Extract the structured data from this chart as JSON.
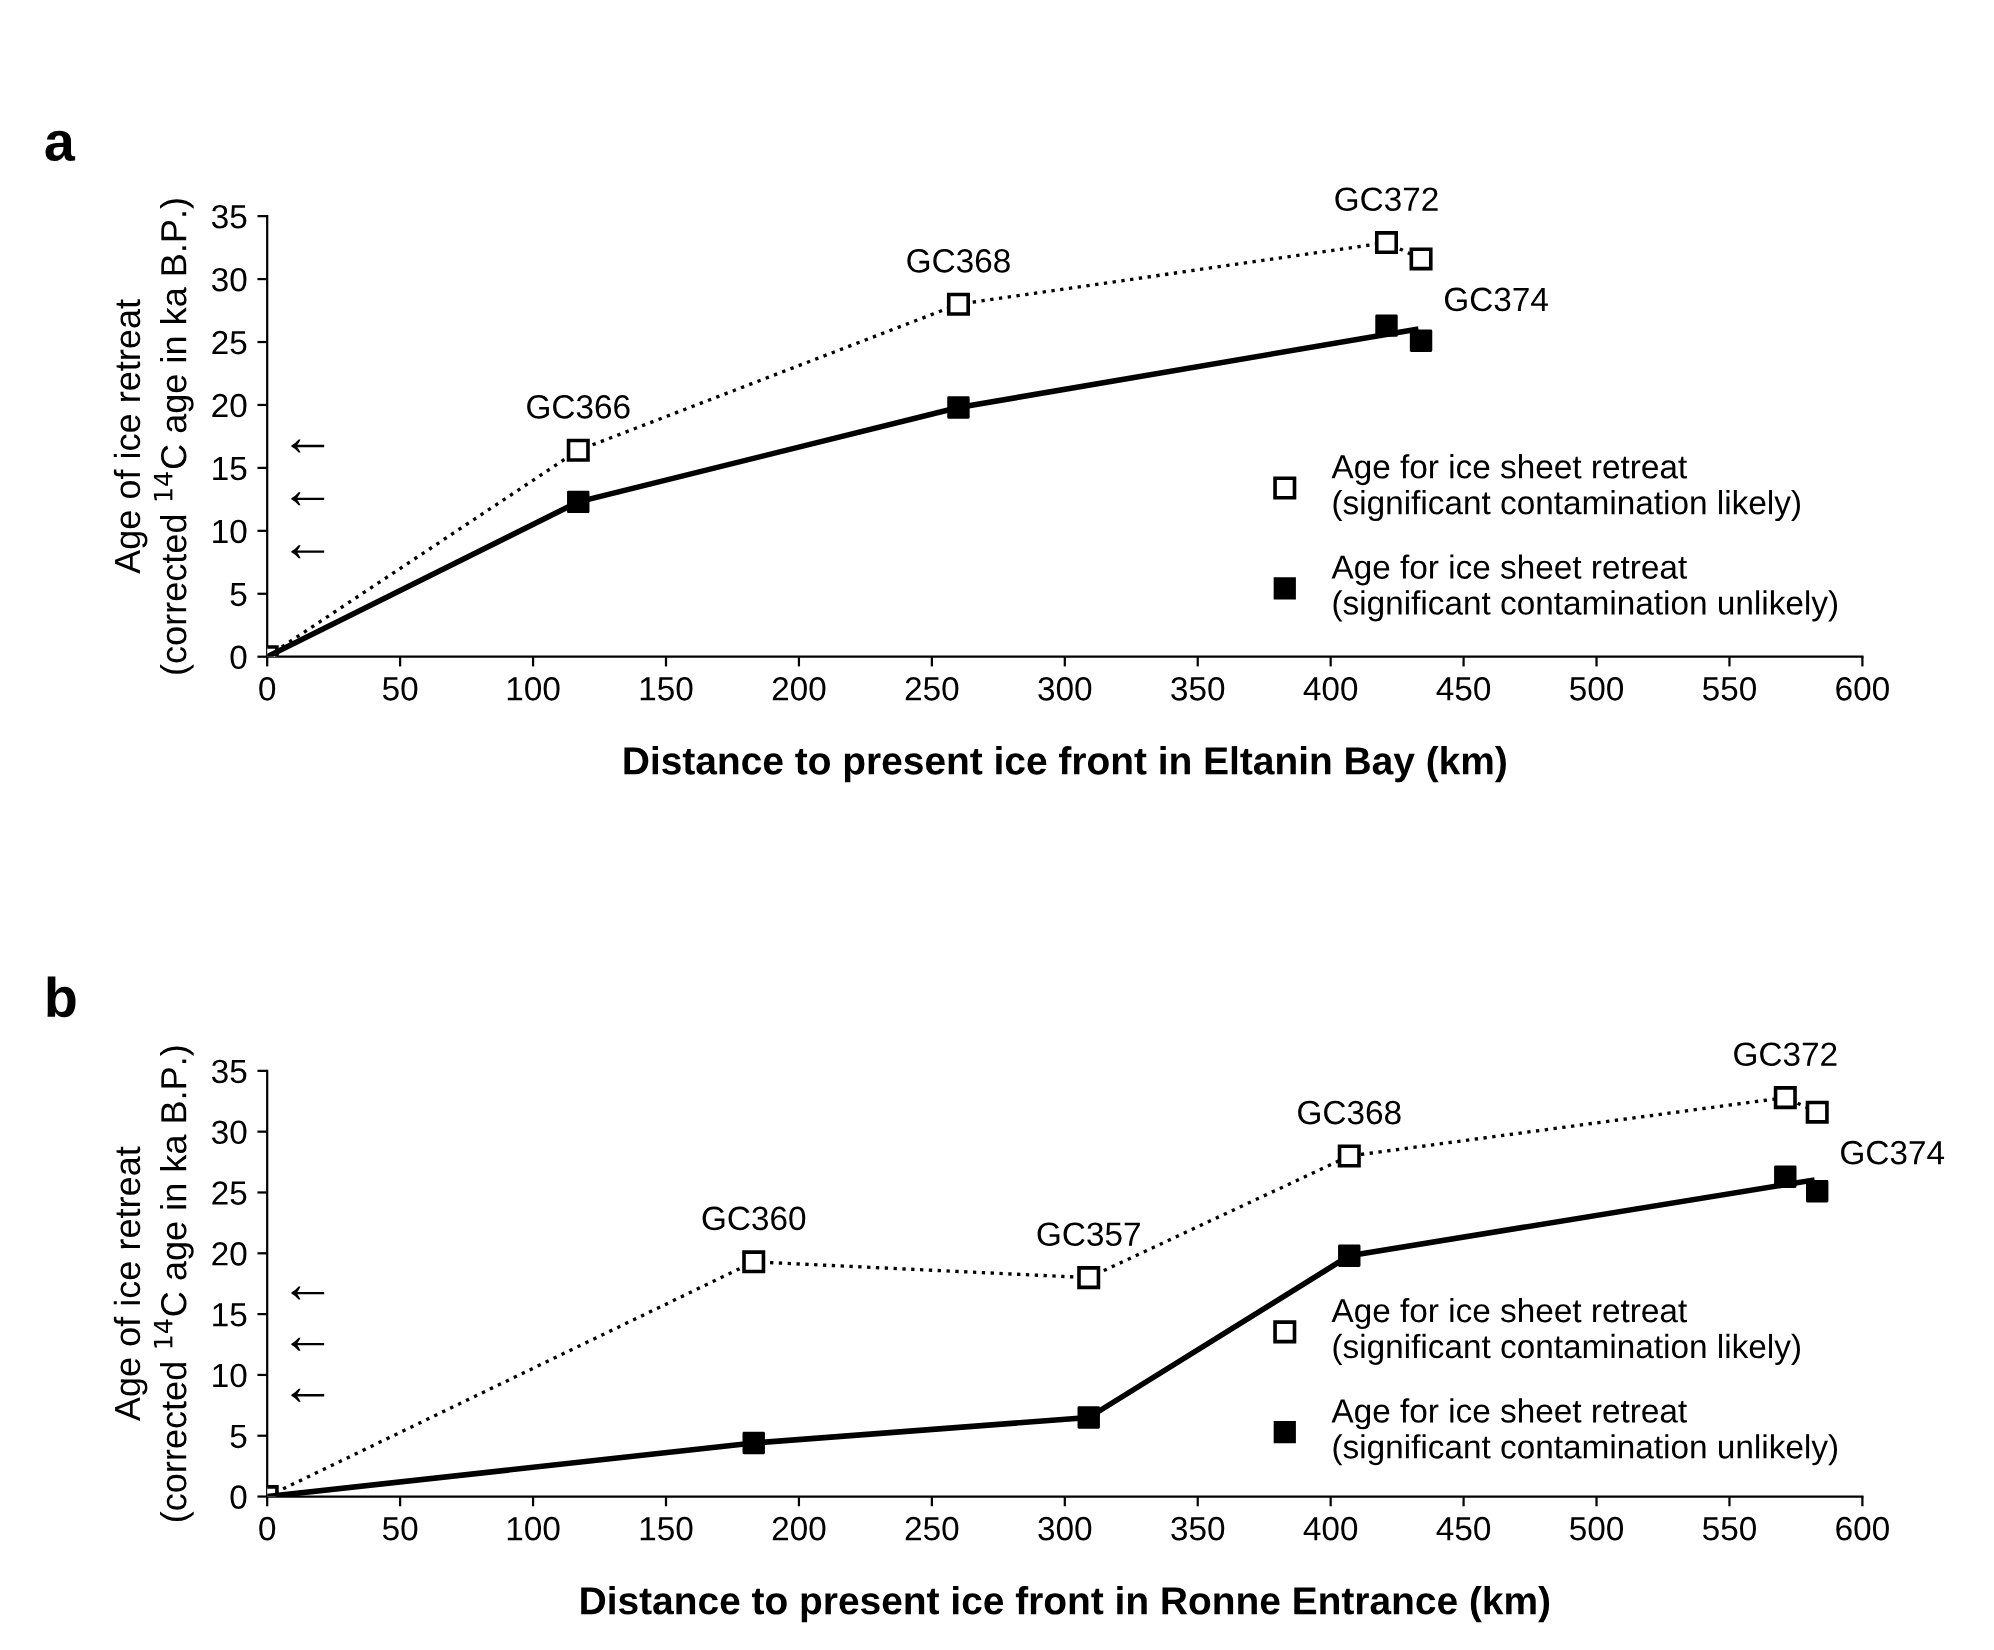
{
  "chart_data": [
    {
      "type": "line",
      "title": "a",
      "xlabel": "Distance to present ice front in Eltanin Bay (km)",
      "ylabel": "Age of ice retreat\n(corrected $^{14}$C age in ka B.P.)",
      "xlim": [
        0,
        600
      ],
      "ylim": [
        0,
        35
      ],
      "xticks": [
        0,
        50,
        100,
        150,
        200,
        250,
        300,
        350,
        400,
        450,
        500,
        550,
        600
      ],
      "yticks": [
        0,
        5,
        10,
        15,
        20,
        25,
        30,
        35
      ],
      "grid": false,
      "legend": "right",
      "series": [
        {
          "name": "Age for ice sheet retreat\n(significant contamination likely)",
          "color": "#000000",
          "marker": "square",
          "line_style": "dotted",
          "x": [
            0,
            117,
            260,
            421,
            434
          ],
          "values": [
            0,
            16.4,
            28,
            32.9,
            31.6
          ]
        },
        {
          "color": "#000000",
          "marker": "none",
          "line_style": "solid",
          "x": [
            0,
            117,
            260,
            432
          ],
          "values": [
            0,
            12.3,
            19.8,
            26
          ]
        },
        {
          "name": "Age for ice sheet retreat\n(significant contamination unlikely)",
          "type": "scatter",
          "color": "#000000",
          "marker": "square",
          "x": [
            117,
            260,
            421,
            434
          ],
          "values": [
            12.3,
            19.8,
            26.3,
            25.1
          ]
        }
      ],
      "annotations": [
        {
          "text": "GC366",
          "x": 117,
          "y": 16.4
        },
        {
          "text": "GC368",
          "x": 260,
          "y": 28
        },
        {
          "text": "GC372",
          "x": 421,
          "y": 32.9
        },
        {
          "text": "GC374",
          "x": 434,
          "y": 31.6
        },
        "←",
        "←",
        "←"
      ]
    },
    {
      "type": "line",
      "title": "b",
      "xlabel": "Distance to present ice front in Ronne Entrance (km)",
      "ylabel": "Age of ice retreat\n(corrected $^{14}$C age in ka B.P.)",
      "xlim": [
        0,
        600
      ],
      "ylim": [
        0,
        35
      ],
      "xticks": [
        0,
        50,
        100,
        150,
        200,
        250,
        300,
        350,
        400,
        450,
        500,
        550,
        600
      ],
      "yticks": [
        0,
        5,
        10,
        15,
        20,
        25,
        30,
        35
      ],
      "grid": false,
      "legend": "right",
      "series": [
        {
          "name": "Age for ice sheet retreat\n(significant contamination likely)",
          "color": "#000000",
          "marker": "square",
          "line_style": "dotted",
          "x": [
            0,
            183,
            309,
            407,
            571,
            583
          ],
          "values": [
            0,
            19.3,
            18,
            28,
            32.8,
            31.6
          ]
        },
        {
          "color": "#000000",
          "marker": "none",
          "line_style": "solid",
          "x": [
            0,
            183,
            309,
            407,
            581
          ],
          "values": [
            0,
            4.4,
            6.5,
            19.8,
            26
          ]
        },
        {
          "name": "Age for ice sheet retreat\n(significant contamination unlikely)",
          "type": "scatter",
          "color": "#000000",
          "marker": "square",
          "x": [
            183,
            309,
            407,
            571,
            583
          ],
          "values": [
            4.4,
            6.5,
            19.8,
            26.3,
            25.1
          ]
        }
      ],
      "annotations": [
        {
          "text": "GC360",
          "x": 183,
          "y": 19.3
        },
        {
          "text": "GC357",
          "x": 309,
          "y": 18
        },
        {
          "text": "GC368",
          "x": 407,
          "y": 28
        },
        {
          "text": "GC372",
          "x": 571,
          "y": 32.8
        },
        {
          "text": "GC374",
          "x": 583,
          "y": 31.6
        },
        "←",
        "←",
        "←"
      ]
    }
  ]
}
